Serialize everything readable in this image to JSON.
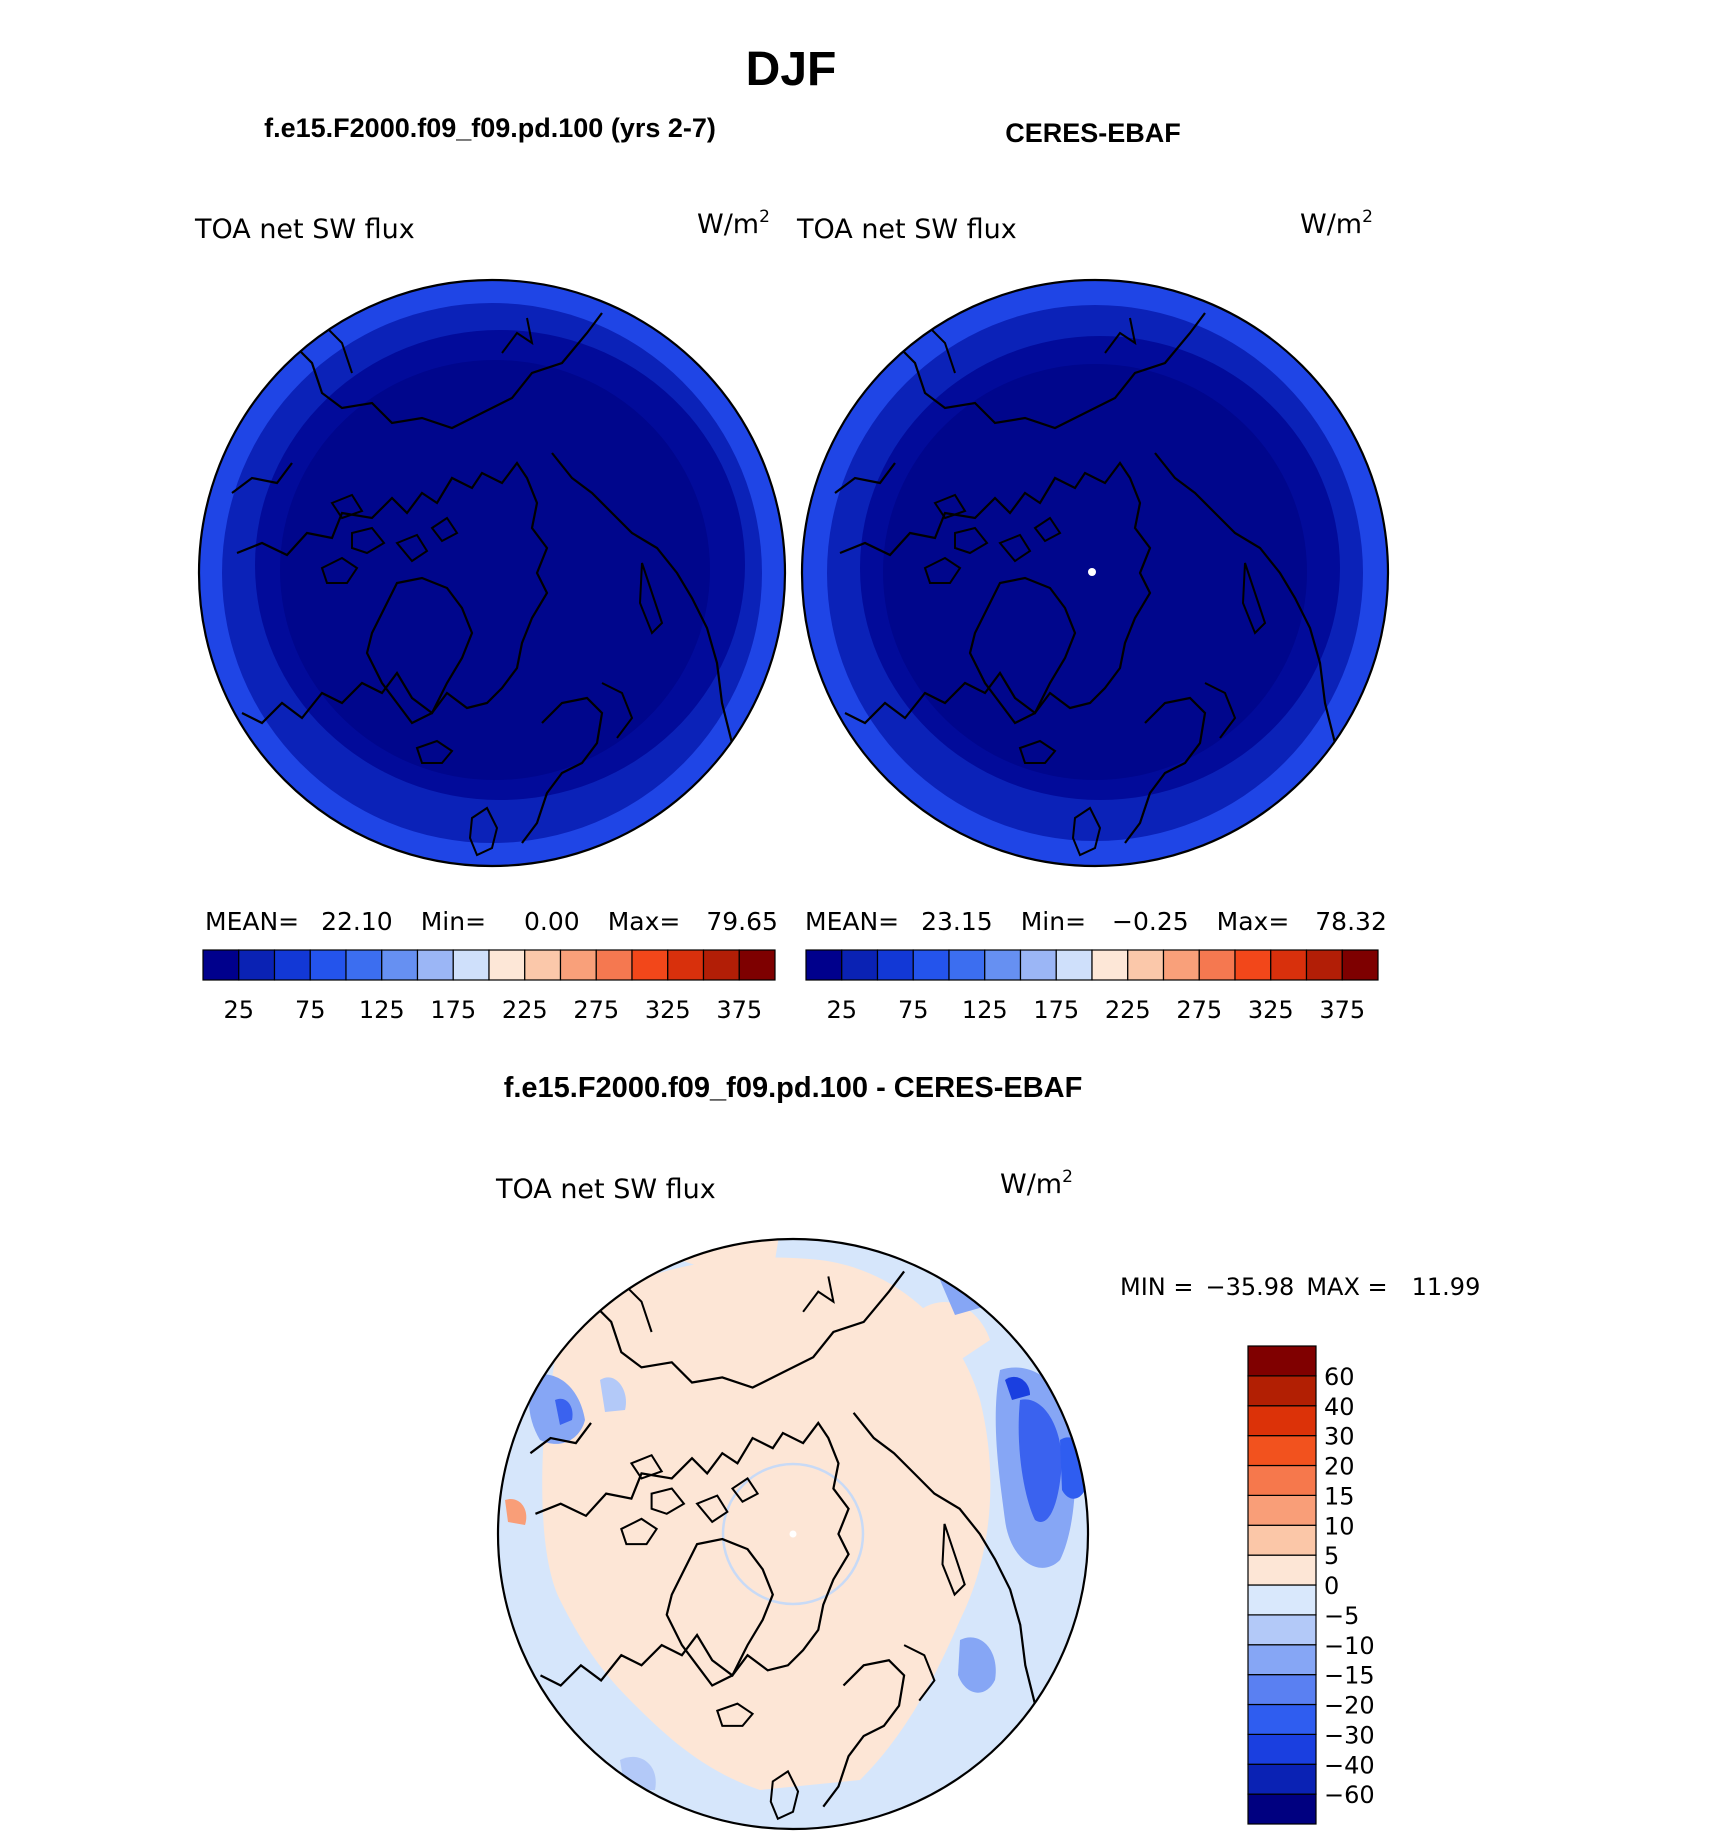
{
  "main_title": "DJF",
  "panels": {
    "model": {
      "case_title": "f.e15.F2000.f09_f09.pd.100 (yrs 2-7)",
      "variable": "TOA net SW flux",
      "units": "W/m",
      "units_exp": "2",
      "stats": {
        "mean_label": "MEAN=",
        "mean": "22.10",
        "min_label": "Min=",
        "min": "0.00",
        "max_label": "Max=",
        "max": "79.65"
      }
    },
    "obs": {
      "case_title": "CERES-EBAF",
      "variable": "TOA net SW flux",
      "units": "W/m",
      "units_exp": "2",
      "stats": {
        "mean_label": "MEAN=",
        "mean": "23.15",
        "min_label": "Min=",
        "min": "−0.25",
        "max_label": "Max=",
        "max": "78.32"
      }
    },
    "diff": {
      "case_title": "f.e15.F2000.f09_f09.pd.100 - CERES-EBAF",
      "variable": "TOA net SW flux",
      "units": "W/m",
      "units_exp": "2",
      "stats": {
        "min_label": "MIN =",
        "min": "−35.98",
        "max_label": "MAX =",
        "max": "11.99"
      }
    }
  },
  "colorbars": {
    "field": {
      "colors": [
        "#00008c",
        "#0a22b4",
        "#1238d6",
        "#2454ec",
        "#3c6ef0",
        "#6690f2",
        "#9bb6f6",
        "#cfe0fb",
        "#fde7d7",
        "#fbc8aa",
        "#f9a07a",
        "#f57850",
        "#f2471a",
        "#d8300c",
        "#b21e06",
        "#7e0000"
      ],
      "tick_labels": [
        "25",
        "75",
        "125",
        "175",
        "225",
        "275",
        "325",
        "375"
      ]
    },
    "diff": {
      "colors": [
        "#000080",
        "#0a22b4",
        "#1a3fe0",
        "#2f5df0",
        "#5a80f2",
        "#86a6f5",
        "#b3c9f8",
        "#d9e8fc",
        "#fde6d6",
        "#fbc7a8",
        "#f99e78",
        "#f6784c",
        "#f2521e",
        "#dc3208",
        "#b21f03",
        "#800000"
      ],
      "tick_labels": [
        "60",
        "40",
        "30",
        "20",
        "15",
        "10",
        "5",
        "0",
        "−5",
        "−10",
        "−15",
        "−20",
        "−30",
        "−40",
        "−60"
      ]
    }
  }
}
